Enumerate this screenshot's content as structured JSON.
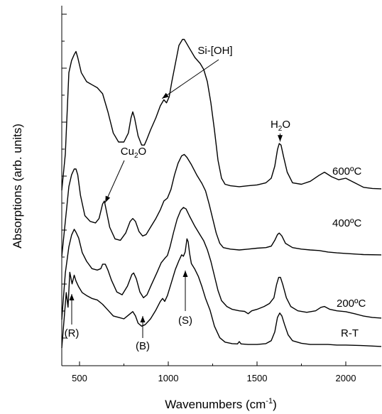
{
  "chart_data": {
    "type": "line",
    "title": "",
    "xlabel": "Wavenumbers (cm",
    "xlabel_sup": "-1",
    "xlabel_close": ")",
    "ylabel": "Absorptions (arb. units)",
    "xlim": [
      400,
      2200
    ],
    "x_ticks": [
      500,
      1000,
      1500,
      2000
    ],
    "y_ticks_labeled": false,
    "grid": false,
    "line_color": "#000000",
    "series": [
      {
        "name": "600ºC",
        "points": [
          [
            400,
            0.0
          ],
          [
            420,
            1.2
          ],
          [
            440,
            3.9
          ],
          [
            455,
            4.3
          ],
          [
            470,
            4.5
          ],
          [
            480,
            4.6
          ],
          [
            490,
            4.4
          ],
          [
            510,
            3.9
          ],
          [
            540,
            3.6
          ],
          [
            570,
            3.5
          ],
          [
            600,
            3.4
          ],
          [
            630,
            3.2
          ],
          [
            660,
            2.6
          ],
          [
            690,
            1.9
          ],
          [
            720,
            1.6
          ],
          [
            750,
            1.6
          ],
          [
            775,
            1.9
          ],
          [
            790,
            2.4
          ],
          [
            800,
            2.6
          ],
          [
            810,
            2.4
          ],
          [
            830,
            1.8
          ],
          [
            850,
            1.5
          ],
          [
            865,
            1.5
          ],
          [
            880,
            1.7
          ],
          [
            900,
            2.0
          ],
          [
            930,
            2.4
          ],
          [
            955,
            2.8
          ],
          [
            975,
            3.0
          ],
          [
            990,
            2.9
          ],
          [
            1005,
            3.1
          ],
          [
            1020,
            3.6
          ],
          [
            1040,
            4.2
          ],
          [
            1060,
            4.8
          ],
          [
            1080,
            5.0
          ],
          [
            1090,
            5.0
          ],
          [
            1100,
            4.9
          ],
          [
            1120,
            4.7
          ],
          [
            1150,
            4.4
          ],
          [
            1180,
            4.2
          ],
          [
            1200,
            4.0
          ],
          [
            1220,
            3.6
          ],
          [
            1240,
            2.9
          ],
          [
            1260,
            2.0
          ],
          [
            1280,
            1.0
          ],
          [
            1300,
            0.4
          ],
          [
            1320,
            0.2
          ],
          [
            1350,
            0.15
          ],
          [
            1400,
            0.12
          ],
          [
            1450,
            0.15
          ],
          [
            1500,
            0.18
          ],
          [
            1550,
            0.25
          ],
          [
            1580,
            0.4
          ],
          [
            1600,
            0.8
          ],
          [
            1615,
            1.35
          ],
          [
            1625,
            1.55
          ],
          [
            1635,
            1.5
          ],
          [
            1650,
            1.1
          ],
          [
            1670,
            0.6
          ],
          [
            1700,
            0.25
          ],
          [
            1750,
            0.2
          ],
          [
            1800,
            0.3
          ],
          [
            1850,
            0.5
          ],
          [
            1880,
            0.6
          ],
          [
            1920,
            0.45
          ],
          [
            1960,
            0.35
          ],
          [
            2000,
            0.4
          ],
          [
            2050,
            0.25
          ],
          [
            2100,
            0.1
          ],
          [
            2150,
            0.06
          ],
          [
            2200,
            0.05
          ]
        ]
      },
      {
        "name": "400ºC",
        "points": [
          [
            400,
            0.0
          ],
          [
            420,
            1.2
          ],
          [
            440,
            2.4
          ],
          [
            455,
            2.8
          ],
          [
            470,
            3.0
          ],
          [
            480,
            3.0
          ],
          [
            490,
            2.8
          ],
          [
            505,
            2.1
          ],
          [
            530,
            1.4
          ],
          [
            560,
            1.2
          ],
          [
            590,
            1.15
          ],
          [
            610,
            1.3
          ],
          [
            630,
            1.8
          ],
          [
            640,
            1.9
          ],
          [
            650,
            1.6
          ],
          [
            670,
            1.0
          ],
          [
            700,
            0.6
          ],
          [
            730,
            0.55
          ],
          [
            760,
            0.8
          ],
          [
            785,
            1.2
          ],
          [
            800,
            1.3
          ],
          [
            815,
            1.2
          ],
          [
            835,
            0.85
          ],
          [
            855,
            0.7
          ],
          [
            875,
            0.75
          ],
          [
            900,
            1.0
          ],
          [
            930,
            1.3
          ],
          [
            955,
            1.6
          ],
          [
            975,
            1.9
          ],
          [
            995,
            2.0
          ],
          [
            1015,
            2.3
          ],
          [
            1035,
            2.8
          ],
          [
            1055,
            3.2
          ],
          [
            1075,
            3.45
          ],
          [
            1090,
            3.5
          ],
          [
            1105,
            3.4
          ],
          [
            1130,
            3.15
          ],
          [
            1160,
            2.8
          ],
          [
            1190,
            2.5
          ],
          [
            1210,
            2.25
          ],
          [
            1230,
            1.8
          ],
          [
            1250,
            1.3
          ],
          [
            1270,
            0.8
          ],
          [
            1290,
            0.45
          ],
          [
            1310,
            0.3
          ],
          [
            1350,
            0.25
          ],
          [
            1400,
            0.22
          ],
          [
            1450,
            0.25
          ],
          [
            1500,
            0.28
          ],
          [
            1550,
            0.3
          ],
          [
            1580,
            0.35
          ],
          [
            1600,
            0.55
          ],
          [
            1615,
            0.75
          ],
          [
            1625,
            0.8
          ],
          [
            1640,
            0.7
          ],
          [
            1660,
            0.45
          ],
          [
            1700,
            0.3
          ],
          [
            1750,
            0.25
          ],
          [
            1800,
            0.22
          ],
          [
            1850,
            0.2
          ],
          [
            1900,
            0.15
          ],
          [
            1950,
            0.12
          ],
          [
            2000,
            0.1
          ],
          [
            2100,
            0.06
          ],
          [
            2200,
            0.05
          ]
        ]
      },
      {
        "name": "200ºC",
        "points": [
          [
            400,
            0.0
          ],
          [
            420,
            1.6
          ],
          [
            440,
            2.5
          ],
          [
            455,
            2.9
          ],
          [
            470,
            3.1
          ],
          [
            480,
            3.0
          ],
          [
            495,
            2.8
          ],
          [
            515,
            2.3
          ],
          [
            540,
            2.0
          ],
          [
            570,
            1.75
          ],
          [
            600,
            1.7
          ],
          [
            620,
            1.75
          ],
          [
            630,
            1.9
          ],
          [
            645,
            1.9
          ],
          [
            660,
            1.7
          ],
          [
            680,
            1.35
          ],
          [
            710,
            0.95
          ],
          [
            740,
            0.85
          ],
          [
            770,
            1.15
          ],
          [
            795,
            1.55
          ],
          [
            805,
            1.6
          ],
          [
            820,
            1.4
          ],
          [
            840,
            0.95
          ],
          [
            860,
            0.75
          ],
          [
            880,
            0.85
          ],
          [
            905,
            1.2
          ],
          [
            935,
            1.6
          ],
          [
            960,
            1.95
          ],
          [
            980,
            2.1
          ],
          [
            995,
            2.2
          ],
          [
            1010,
            2.5
          ],
          [
            1030,
            3.0
          ],
          [
            1050,
            3.45
          ],
          [
            1070,
            3.75
          ],
          [
            1085,
            3.85
          ],
          [
            1100,
            3.8
          ],
          [
            1120,
            3.55
          ],
          [
            1150,
            3.2
          ],
          [
            1180,
            2.9
          ],
          [
            1200,
            2.7
          ],
          [
            1220,
            2.4
          ],
          [
            1240,
            2.0
          ],
          [
            1260,
            1.5
          ],
          [
            1280,
            1.0
          ],
          [
            1300,
            0.65
          ],
          [
            1330,
            0.45
          ],
          [
            1360,
            0.35
          ],
          [
            1400,
            0.3
          ],
          [
            1430,
            0.28
          ],
          [
            1450,
            0.2
          ],
          [
            1470,
            0.3
          ],
          [
            1500,
            0.35
          ],
          [
            1540,
            0.45
          ],
          [
            1570,
            0.55
          ],
          [
            1595,
            0.75
          ],
          [
            1610,
            1.2
          ],
          [
            1622,
            1.45
          ],
          [
            1632,
            1.45
          ],
          [
            1645,
            1.2
          ],
          [
            1665,
            0.75
          ],
          [
            1690,
            0.45
          ],
          [
            1730,
            0.3
          ],
          [
            1780,
            0.25
          ],
          [
            1830,
            0.3
          ],
          [
            1860,
            0.42
          ],
          [
            1880,
            0.45
          ],
          [
            1910,
            0.35
          ],
          [
            1950,
            0.3
          ],
          [
            2000,
            0.27
          ],
          [
            2050,
            0.2
          ],
          [
            2100,
            0.12
          ],
          [
            2150,
            0.07
          ],
          [
            2200,
            0.05
          ]
        ]
      },
      {
        "name": "R-T",
        "points": [
          [
            400,
            0.0
          ],
          [
            425,
            1.9
          ],
          [
            435,
            1.4
          ],
          [
            445,
            2.6
          ],
          [
            458,
            2.2
          ],
          [
            470,
            2.5
          ],
          [
            480,
            2.3
          ],
          [
            495,
            2.1
          ],
          [
            515,
            1.9
          ],
          [
            540,
            1.8
          ],
          [
            570,
            1.7
          ],
          [
            600,
            1.65
          ],
          [
            630,
            1.5
          ],
          [
            660,
            1.3
          ],
          [
            690,
            1.1
          ],
          [
            720,
            1.05
          ],
          [
            750,
            1.0
          ],
          [
            770,
            1.1
          ],
          [
            790,
            1.2
          ],
          [
            800,
            1.25
          ],
          [
            815,
            1.1
          ],
          [
            830,
            0.85
          ],
          [
            850,
            0.75
          ],
          [
            870,
            0.8
          ],
          [
            900,
            1.0
          ],
          [
            930,
            1.3
          ],
          [
            955,
            1.6
          ],
          [
            968,
            1.7
          ],
          [
            980,
            1.6
          ],
          [
            995,
            1.8
          ],
          [
            1015,
            2.2
          ],
          [
            1040,
            2.7
          ],
          [
            1060,
            3.0
          ],
          [
            1075,
            3.2
          ],
          [
            1085,
            3.15
          ],
          [
            1095,
            3.3
          ],
          [
            1105,
            3.75
          ],
          [
            1112,
            3.65
          ],
          [
            1120,
            3.25
          ],
          [
            1130,
            2.9
          ],
          [
            1150,
            2.7
          ],
          [
            1170,
            2.45
          ],
          [
            1190,
            2.1
          ],
          [
            1210,
            1.7
          ],
          [
            1235,
            1.3
          ],
          [
            1260,
            0.75
          ],
          [
            1290,
            0.35
          ],
          [
            1320,
            0.2
          ],
          [
            1360,
            0.15
          ],
          [
            1390,
            0.14
          ],
          [
            1400,
            0.22
          ],
          [
            1410,
            0.14
          ],
          [
            1450,
            0.12
          ],
          [
            1500,
            0.12
          ],
          [
            1550,
            0.15
          ],
          [
            1580,
            0.25
          ],
          [
            1600,
            0.55
          ],
          [
            1615,
            1.05
          ],
          [
            1628,
            1.2
          ],
          [
            1640,
            1.1
          ],
          [
            1655,
            0.8
          ],
          [
            1675,
            0.45
          ],
          [
            1700,
            0.25
          ],
          [
            1750,
            0.16
          ],
          [
            1800,
            0.12
          ],
          [
            1850,
            0.12
          ],
          [
            1900,
            0.12
          ],
          [
            1950,
            0.1
          ],
          [
            2000,
            0.1
          ],
          [
            2100,
            0.08
          ],
          [
            2200,
            0.05
          ]
        ]
      }
    ],
    "annotations": [
      {
        "text": "Si-[OH]"
      },
      {
        "text": "H",
        "sub": "2",
        "rest": "O"
      },
      {
        "text": "Cu",
        "sub": "2",
        "rest": "O"
      },
      {
        "text": "(R)"
      },
      {
        "text": "(B)"
      },
      {
        "text": "(S)"
      }
    ]
  }
}
